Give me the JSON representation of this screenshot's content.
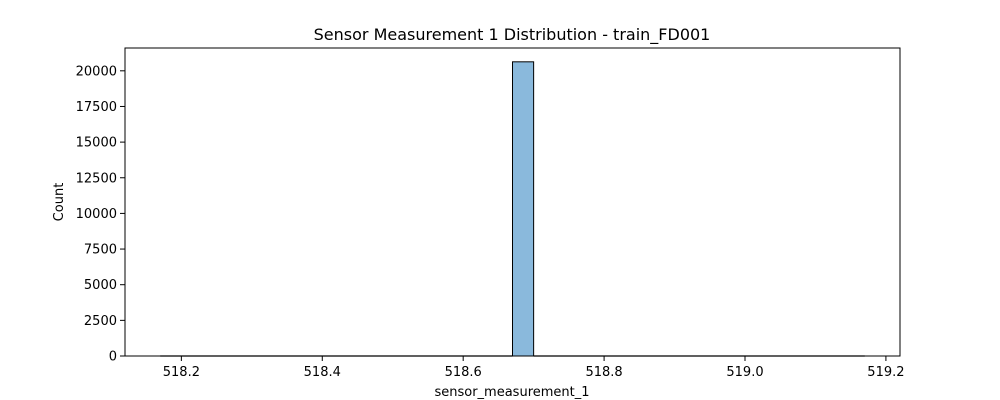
{
  "chart_data": {
    "type": "bar",
    "title": "Sensor Measurement 1 Distribution - train_FD001",
    "xlabel": "sensor_measurement_1",
    "ylabel": "Count",
    "xlim": [
      518.12,
      519.22
    ],
    "ylim": [
      0,
      21600
    ],
    "xticks": [
      "518.2",
      "518.4",
      "518.6",
      "518.8",
      "519.0",
      "519.2"
    ],
    "yticks": [
      "0",
      "2500",
      "5000",
      "7500",
      "10000",
      "12500",
      "15000",
      "17500",
      "20000"
    ],
    "bins": [
      {
        "x0": 518.17,
        "x1": 518.67,
        "count": 0
      },
      {
        "x0": 518.67,
        "x1": 518.7,
        "count": 20631
      },
      {
        "x0": 518.7,
        "x1": 519.17,
        "count": 0
      }
    ],
    "grid": false,
    "colors": {
      "bar_fill": "#8ab9dc",
      "bar_edge": "#000000",
      "axes": "#000000"
    }
  }
}
